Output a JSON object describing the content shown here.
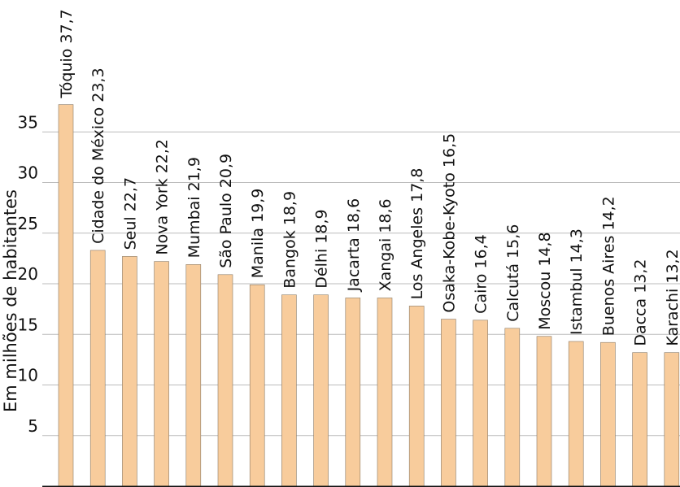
{
  "chart_data": {
    "type": "bar",
    "title": "",
    "xlabel": "",
    "ylabel": "Em milhões de habitantes",
    "ylim": [
      0,
      38
    ],
    "yticks": [
      5,
      10,
      15,
      20,
      25,
      30,
      35
    ],
    "grid": true,
    "bar_color": "#f8cc9c",
    "bar_edge_color": "#8a7a66",
    "grid_color": "#bbbbbb",
    "categories": [
      "Tóquio",
      "Cidade do México",
      "Seul",
      "Nova York",
      "Mumbai",
      "São Paulo",
      "Manila",
      "Bangok",
      "Délhi",
      "Jacarta",
      "Xangai",
      "Los Angeles",
      "Osaka-Kobe-Kyoto",
      "Cairo",
      "Calcutá",
      "Moscou",
      "Istambul",
      "Buenos Aires",
      "Dacca",
      "Karachi"
    ],
    "values": [
      37.7,
      23.3,
      22.7,
      22.2,
      21.9,
      20.9,
      19.9,
      18.9,
      18.9,
      18.6,
      18.6,
      17.8,
      16.5,
      16.4,
      15.6,
      14.8,
      14.3,
      14.2,
      13.2,
      13.2
    ],
    "value_labels": [
      "37,7",
      "23,3",
      "22,7",
      "22,2",
      "21,9",
      "20,9",
      "19,9",
      "18,9",
      "18,9",
      "18,6",
      "18,6",
      "17,8",
      "16,5",
      "16,4",
      "15,6",
      "14,8",
      "14,3",
      "14,2",
      "13,2",
      "13,2"
    ],
    "bar_labels": [
      "Tóquio 37,7",
      "Cidade do México 23,3",
      "Seul 22,7",
      "Nova York 22,2",
      "Mumbai 21,9",
      "São Paulo 20,9",
      "Manila 19,9",
      "Bangok 18,9",
      "Délhi 18,9",
      "Jacarta 18,6",
      "Xangai 18,6",
      "Los Angeles 17,8",
      "Osaka-Kobe-Kyoto 16,5",
      "Cairo 16,4",
      "Calcutá 15,6",
      "Moscou 14,8",
      "Istambul 14,3",
      "Buenos Aires 14,2",
      "Dacca 13,2",
      "Karachi 13,2"
    ]
  }
}
